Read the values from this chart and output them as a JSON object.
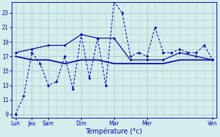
{
  "title": "Température (°c)",
  "background_color": "#d4eeee",
  "grid_color": "#aacccc",
  "line_color": "#0000aa",
  "ylim": [
    8.5,
    24.5
  ],
  "yticks": [
    9,
    11,
    13,
    15,
    17,
    19,
    21,
    23
  ],
  "x_major_positions": [
    0,
    2,
    4,
    8,
    12,
    16,
    24
  ],
  "x_major_labels": [
    "Lun",
    "Jeu",
    "Sam",
    "Dim",
    "Mar",
    "Mer",
    "Ven"
  ],
  "series_zigzag_x": [
    0,
    1,
    2,
    3,
    4,
    5,
    6,
    7,
    8,
    9,
    10,
    11,
    12,
    13,
    14,
    15,
    16,
    17,
    18,
    19,
    20,
    21,
    22,
    23,
    24
  ],
  "series_zigzag_y": [
    9,
    11.5,
    17.5,
    16.0,
    13.0,
    13.5,
    17.0,
    12.5,
    20.0,
    14.0,
    19.5,
    13.0,
    24.5,
    23.0,
    17.0,
    17.5,
    17.0,
    21.0,
    17.5,
    17.5,
    18.0,
    17.5,
    17.5,
    18.5,
    16.5
  ],
  "series_upper_x": [
    0,
    2,
    4,
    6,
    8,
    10,
    12,
    14,
    16,
    18,
    20,
    22,
    24
  ],
  "series_upper_y": [
    17.5,
    18.0,
    18.5,
    18.5,
    20.0,
    19.5,
    19.5,
    16.5,
    16.5,
    16.5,
    17.5,
    17.0,
    16.5
  ],
  "series_lower_x": [
    0,
    2,
    4,
    6,
    8,
    10,
    12,
    14,
    16,
    18,
    20,
    22,
    24
  ],
  "series_lower_y": [
    17.0,
    16.5,
    16.5,
    16.0,
    16.5,
    16.5,
    16.0,
    16.0,
    16.0,
    16.0,
    16.5,
    16.5,
    16.5
  ]
}
